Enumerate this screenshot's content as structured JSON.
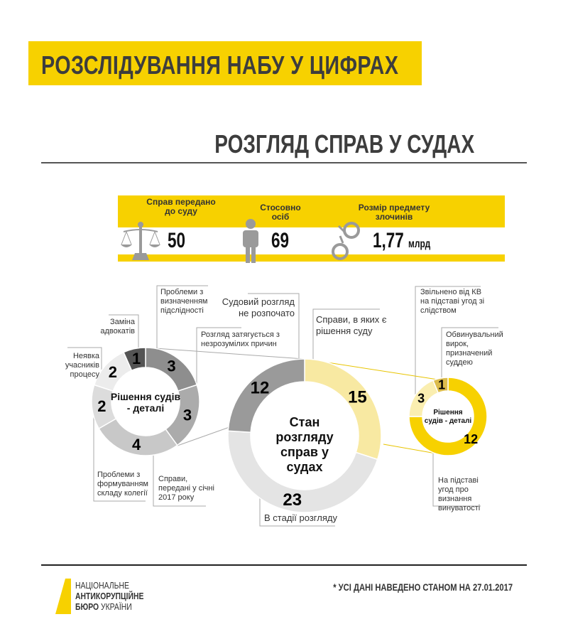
{
  "header": {
    "title": "РОЗСЛІДУВАННЯ НАБУ У ЦИФРАХ",
    "subtitle": "РОЗГЛЯД СПРАВ У СУДАХ"
  },
  "stats": [
    {
      "label": "Справ передано до суду",
      "value": "50",
      "unit": "",
      "icon": "scales-icon"
    },
    {
      "label": "Стосовно осіб",
      "value": "69",
      "unit": "",
      "icon": "person-icon"
    },
    {
      "label": "Розмір предмету злочинів",
      "value": "1,77",
      "unit": "млрд",
      "icon": "handcuffs-icon"
    }
  ],
  "colors": {
    "accent": "#f7d100",
    "dark": "#3d3d3d"
  },
  "chart_data": [
    {
      "type": "pie",
      "title": "Рішення судів - деталі",
      "categories": [
        "Проблеми з визначенням підслідності",
        "Розгляд затягується з незрозумілих причин",
        "Справи, передані у січні 2017 року",
        "Проблеми з формуванням складу колегії",
        "Неявка учасників процесу",
        "Заміна адвокатів"
      ],
      "values": [
        3,
        3,
        4,
        2,
        2,
        1
      ],
      "colors": [
        "#8e8e8e",
        "#ababab",
        "#c8c8c8",
        "#dcdcdc",
        "#ececec",
        "#545454"
      ]
    },
    {
      "type": "pie",
      "title": "Стан розгляду справ у судах",
      "categories": [
        "Справи, в яких є рішення суду",
        "В стадії розгляду",
        "Судовий розгляд не розпочато"
      ],
      "values": [
        15,
        23,
        12
      ],
      "colors": [
        "#f8e9a2",
        "#e4e4e4",
        "#9a9a9a"
      ]
    },
    {
      "type": "pie",
      "title": "Рішення судів - деталі",
      "categories": [
        "На підставі угод про визнання винуватості",
        "Звільнено від КВ на підставі угод зі слідством",
        "Обвинувальний вирок, призначений суддею"
      ],
      "values": [
        12,
        3,
        1
      ],
      "colors": [
        "#f7d100",
        "#faeeb0",
        "#dcbc4c"
      ]
    }
  ],
  "footer": {
    "logo_line1": "НАЦІОНАЛЬНЕ",
    "logo_line2": "АНТИКОРУПЦІЙНЕ",
    "logo_line3a": "БЮРО",
    "logo_line3b": "УКРАЇНИ",
    "footnote": "*  УСІ ДАНІ НАВЕДЕНО СТАНОМ НА 27.01.2017"
  }
}
